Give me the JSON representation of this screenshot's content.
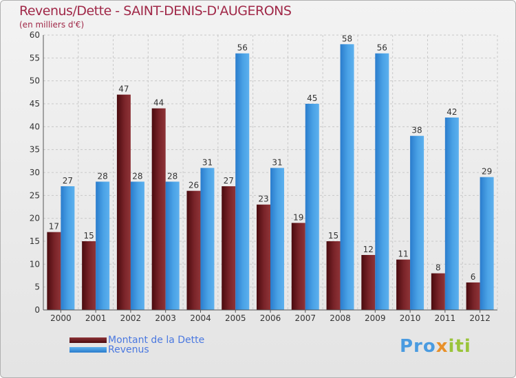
{
  "title": "Revenus/Dette - SAINT-DENIS-D'AUGERONS",
  "subtitle": "(en milliers d'€)",
  "logo_text": "Proxiti",
  "colors": {
    "dette": "#6e1a1f",
    "revenus": "#3a8fd8",
    "title": "#a02848",
    "legend_text": "#4a78e0"
  },
  "legend": [
    {
      "label": "Montant de la Dette",
      "color_key": "dette"
    },
    {
      "label": "Revenus",
      "color_key": "revenus"
    }
  ],
  "chart_data": {
    "type": "bar",
    "title": "Revenus/Dette - SAINT-DENIS-D'AUGERONS",
    "subtitle": "(en milliers d'€)",
    "categories": [
      "2000",
      "2001",
      "2002",
      "2003",
      "2004",
      "2005",
      "2006",
      "2007",
      "2008",
      "2009",
      "2010",
      "2011",
      "2012"
    ],
    "series": [
      {
        "name": "Montant de la Dette",
        "values": [
          17,
          15,
          47,
          44,
          26,
          27,
          23,
          19,
          15,
          12,
          11,
          8,
          6
        ]
      },
      {
        "name": "Revenus",
        "values": [
          27,
          28,
          28,
          28,
          31,
          56,
          31,
          45,
          58,
          56,
          38,
          42,
          29
        ]
      }
    ],
    "ylim": [
      0,
      60
    ],
    "yticks": [
      0,
      5,
      10,
      15,
      20,
      25,
      30,
      35,
      40,
      45,
      50,
      55,
      60
    ],
    "grid": true,
    "legend_position": "bottom-left"
  }
}
